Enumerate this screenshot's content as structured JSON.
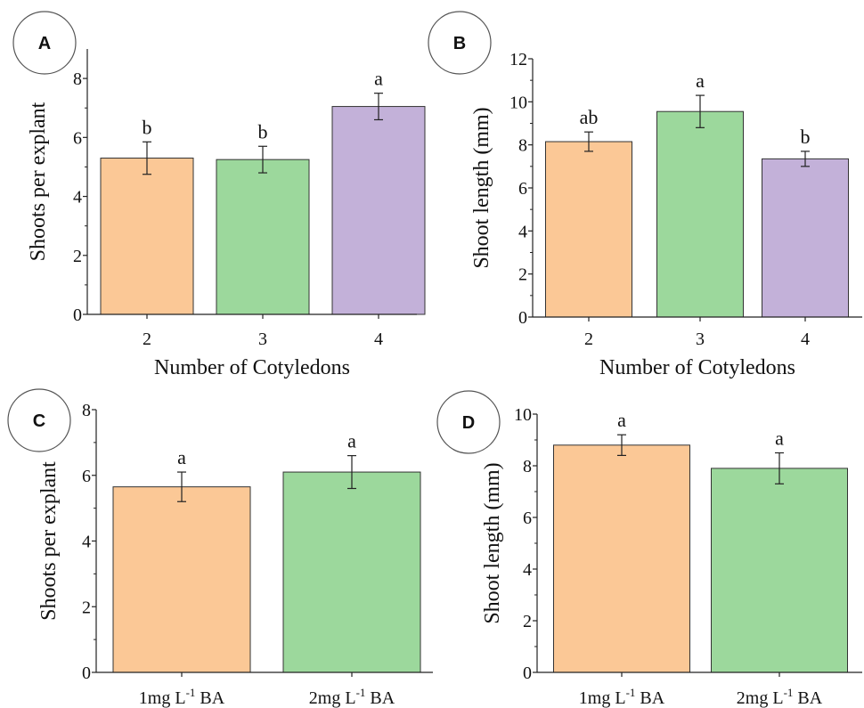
{
  "colors": {
    "orange": "#fbc896",
    "green": "#9cd89c",
    "purple": "#c3b1d9",
    "edge": "#333333"
  },
  "chart_data": [
    {
      "panel": "A",
      "type": "bar",
      "title": "",
      "xlabel": "Number of Cotyledons",
      "ylabel": "Shoots per explant",
      "categories": [
        "2",
        "3",
        "4"
      ],
      "values": [
        5.3,
        5.25,
        7.05
      ],
      "errors": [
        0.55,
        0.45,
        0.45
      ],
      "letters": [
        "b",
        "b",
        "a"
      ],
      "bar_colors": [
        "orange",
        "green",
        "purple"
      ],
      "ylim": [
        0,
        9
      ],
      "yticks": [
        0,
        2,
        4,
        6,
        8
      ],
      "grid": false
    },
    {
      "panel": "B",
      "type": "bar",
      "title": "",
      "xlabel": "Number of Cotyledons",
      "ylabel": "Shoot length (mm)",
      "categories": [
        "2",
        "3",
        "4"
      ],
      "values": [
        8.15,
        9.55,
        7.35
      ],
      "errors": [
        0.45,
        0.75,
        0.35
      ],
      "letters": [
        "ab",
        "a",
        "b"
      ],
      "bar_colors": [
        "orange",
        "green",
        "purple"
      ],
      "ylim": [
        0,
        12
      ],
      "yticks": [
        0,
        2,
        4,
        6,
        8,
        10,
        12
      ],
      "grid": false
    },
    {
      "panel": "C",
      "type": "bar",
      "title": "",
      "xlabel": "",
      "ylabel": "Shoots per explant",
      "categories": [
        "1mg L-1 BA",
        "2mg L-1 BA"
      ],
      "values": [
        5.65,
        6.1
      ],
      "errors": [
        0.45,
        0.5
      ],
      "letters": [
        "a",
        "a"
      ],
      "bar_colors": [
        "orange",
        "green"
      ],
      "ylim": [
        0,
        8
      ],
      "yticks": [
        0,
        2,
        4,
        6,
        8
      ],
      "grid": false
    },
    {
      "panel": "D",
      "type": "bar",
      "title": "",
      "xlabel": "",
      "ylabel": "Shoot length (mm)",
      "categories": [
        "1mg L-1 BA",
        "2mg L-1 BA"
      ],
      "values": [
        8.8,
        7.9
      ],
      "errors": [
        0.4,
        0.6
      ],
      "letters": [
        "a",
        "a"
      ],
      "bar_colors": [
        "orange",
        "green"
      ],
      "ylim": [
        0,
        10
      ],
      "yticks": [
        0,
        2,
        4,
        6,
        8,
        10
      ],
      "grid": false
    }
  ]
}
